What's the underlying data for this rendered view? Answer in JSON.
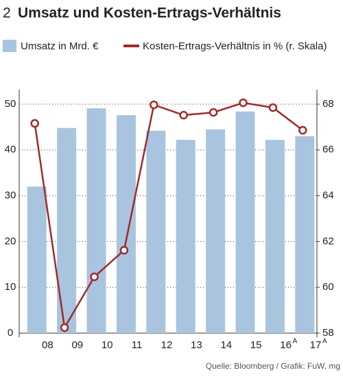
{
  "chart_data": {
    "type": "bar_line",
    "figure_number": "2",
    "title": "Umsatz und Kosten-Ertrags-Verhältnis",
    "source": "Quelle: Bloomberg / Grafik: FuW, mg",
    "categories": [
      null,
      "08",
      "09",
      "10",
      "11",
      "12",
      "13",
      "14",
      "15",
      "16",
      "17"
    ],
    "category_notes": [
      null,
      null,
      null,
      null,
      null,
      null,
      null,
      null,
      null,
      "A",
      "A"
    ],
    "series": [
      {
        "name": "Umsatz in Mrd. €",
        "type": "bar",
        "color": "#a9c4de",
        "values": [
          32.0,
          44.8,
          49.1,
          47.6,
          44.2,
          42.2,
          44.5,
          48.4,
          42.2,
          43.0,
          null
        ]
      },
      {
        "name": "Kosten-Ertrags-Verhältnis in % (r. Skala)",
        "type": "line",
        "axis": "y2",
        "color": "#9e2a2b",
        "values": [
          67.16,
          58.24,
          60.46,
          61.62,
          67.97,
          67.52,
          67.64,
          68.06,
          67.85,
          66.86,
          null
        ]
      }
    ],
    "ylim": [
      0,
      52
    ],
    "yticks": [
      0,
      10,
      20,
      30,
      40,
      50
    ],
    "y2lim": [
      58,
      68.4
    ],
    "y2ticks": [
      58,
      60,
      62,
      64,
      66,
      68
    ],
    "grid": true
  }
}
